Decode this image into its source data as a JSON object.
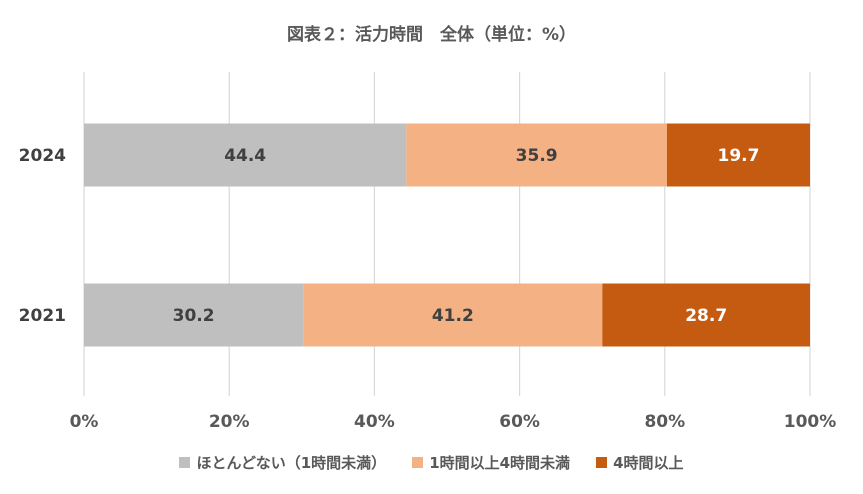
{
  "chart_data": {
    "type": "bar",
    "orientation": "horizontal",
    "stacked": "percent",
    "title": "図表２：活力時間　全体（単位：%）",
    "categories": [
      "2024",
      "2021"
    ],
    "series": [
      {
        "name": "ほとんどない（1時間未満）",
        "values": [
          44.4,
          30.2
        ],
        "labels": [
          "44.4",
          "30.2"
        ],
        "color": "#bfbfbf",
        "label_color": "#404040"
      },
      {
        "name": "1時間以上4時間未満",
        "values": [
          35.9,
          41.2
        ],
        "labels": [
          "35.9",
          "41.2"
        ],
        "color": "#f4b183",
        "label_color": "#404040"
      },
      {
        "name": "4時間以上",
        "values": [
          19.7,
          28.7
        ],
        "labels": [
          "19.7",
          "28.7"
        ],
        "color": "#c55a11",
        "label_color": "#ffffff"
      }
    ],
    "x_ticks": [
      "0%",
      "20%",
      "40%",
      "60%",
      "80%",
      "100%"
    ],
    "xlim": [
      0,
      100
    ],
    "grid": true,
    "legend_position": "bottom"
  }
}
